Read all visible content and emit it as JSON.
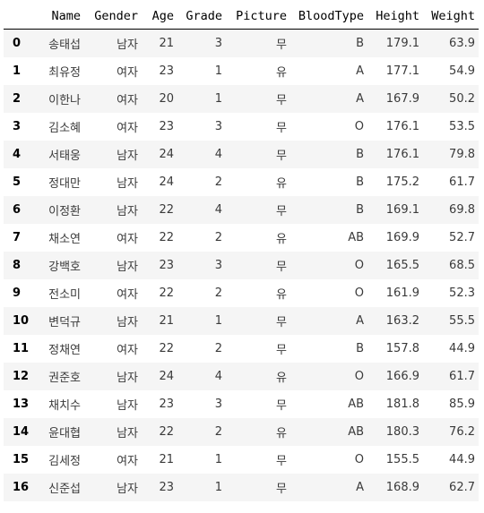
{
  "columns": [
    "Name",
    "Gender",
    "Age",
    "Grade",
    "Picture",
    "BloodType",
    "Height",
    "Weight"
  ],
  "rows": [
    {
      "index": "0",
      "Name": "송태섭",
      "Gender": "남자",
      "Age": "21",
      "Grade": "3",
      "Picture": "무",
      "BloodType": "B",
      "Height": "179.1",
      "Weight": "63.9"
    },
    {
      "index": "1",
      "Name": "최유정",
      "Gender": "여자",
      "Age": "23",
      "Grade": "1",
      "Picture": "유",
      "BloodType": "A",
      "Height": "177.1",
      "Weight": "54.9"
    },
    {
      "index": "2",
      "Name": "이한나",
      "Gender": "여자",
      "Age": "20",
      "Grade": "1",
      "Picture": "무",
      "BloodType": "A",
      "Height": "167.9",
      "Weight": "50.2"
    },
    {
      "index": "3",
      "Name": "김소혜",
      "Gender": "여자",
      "Age": "23",
      "Grade": "3",
      "Picture": "무",
      "BloodType": "O",
      "Height": "176.1",
      "Weight": "53.5"
    },
    {
      "index": "4",
      "Name": "서태웅",
      "Gender": "남자",
      "Age": "24",
      "Grade": "4",
      "Picture": "무",
      "BloodType": "B",
      "Height": "176.1",
      "Weight": "79.8"
    },
    {
      "index": "5",
      "Name": "정대만",
      "Gender": "남자",
      "Age": "24",
      "Grade": "2",
      "Picture": "유",
      "BloodType": "B",
      "Height": "175.2",
      "Weight": "61.7"
    },
    {
      "index": "6",
      "Name": "이정환",
      "Gender": "남자",
      "Age": "22",
      "Grade": "4",
      "Picture": "무",
      "BloodType": "B",
      "Height": "169.1",
      "Weight": "69.8"
    },
    {
      "index": "7",
      "Name": "채소연",
      "Gender": "여자",
      "Age": "22",
      "Grade": "2",
      "Picture": "유",
      "BloodType": "AB",
      "Height": "169.9",
      "Weight": "52.7"
    },
    {
      "index": "8",
      "Name": "강백호",
      "Gender": "남자",
      "Age": "23",
      "Grade": "3",
      "Picture": "무",
      "BloodType": "O",
      "Height": "165.5",
      "Weight": "68.5"
    },
    {
      "index": "9",
      "Name": "전소미",
      "Gender": "여자",
      "Age": "22",
      "Grade": "2",
      "Picture": "유",
      "BloodType": "O",
      "Height": "161.9",
      "Weight": "52.3"
    },
    {
      "index": "10",
      "Name": "변덕규",
      "Gender": "남자",
      "Age": "21",
      "Grade": "1",
      "Picture": "무",
      "BloodType": "A",
      "Height": "163.2",
      "Weight": "55.5"
    },
    {
      "index": "11",
      "Name": "정채연",
      "Gender": "여자",
      "Age": "22",
      "Grade": "2",
      "Picture": "무",
      "BloodType": "B",
      "Height": "157.8",
      "Weight": "44.9"
    },
    {
      "index": "12",
      "Name": "권준호",
      "Gender": "남자",
      "Age": "24",
      "Grade": "4",
      "Picture": "유",
      "BloodType": "O",
      "Height": "166.9",
      "Weight": "61.7"
    },
    {
      "index": "13",
      "Name": "채치수",
      "Gender": "남자",
      "Age": "23",
      "Grade": "3",
      "Picture": "무",
      "BloodType": "AB",
      "Height": "181.8",
      "Weight": "85.9"
    },
    {
      "index": "14",
      "Name": "윤대협",
      "Gender": "남자",
      "Age": "22",
      "Grade": "2",
      "Picture": "유",
      "BloodType": "AB",
      "Height": "180.3",
      "Weight": "76.2"
    },
    {
      "index": "15",
      "Name": "김세정",
      "Gender": "여자",
      "Age": "21",
      "Grade": "1",
      "Picture": "무",
      "BloodType": "O",
      "Height": "155.5",
      "Weight": "44.9"
    },
    {
      "index": "16",
      "Name": "신준섭",
      "Gender": "남자",
      "Age": "23",
      "Grade": "1",
      "Picture": "무",
      "BloodType": "A",
      "Height": "168.9",
      "Weight": "62.7"
    }
  ]
}
